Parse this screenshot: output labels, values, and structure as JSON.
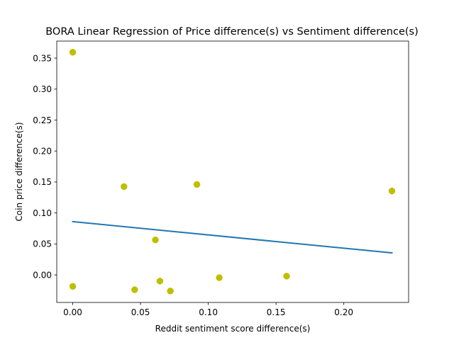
{
  "chart_data": {
    "type": "scatter",
    "title": "BORA Linear Regression of Price difference(s) vs Sentiment difference(s)",
    "xlabel": "Reddit sentiment score difference(s)",
    "ylabel": "Coin price difference(s)",
    "xlim": [
      -0.0118,
      0.2478
    ],
    "ylim": [
      -0.0445,
      0.3775
    ],
    "x_ticks": [
      0.0,
      0.05,
      0.1,
      0.15,
      0.2
    ],
    "x_tick_labels": [
      "0.00",
      "0.05",
      "0.10",
      "0.15",
      "0.20"
    ],
    "y_ticks": [
      0.0,
      0.05,
      0.1,
      0.15,
      0.2,
      0.25,
      0.3,
      0.35
    ],
    "y_tick_labels": [
      "0.00",
      "0.05",
      "0.10",
      "0.15",
      "0.20",
      "0.25",
      "0.30",
      "0.35"
    ],
    "grid": false,
    "legend": "none",
    "series": [
      {
        "kind": "points",
        "color": "#bfbf00",
        "points": [
          {
            "x": 0.0,
            "y": 0.3595
          },
          {
            "x": 0.0,
            "y": -0.0185
          },
          {
            "x": 0.0378,
            "y": 0.1425
          },
          {
            "x": 0.0457,
            "y": -0.024
          },
          {
            "x": 0.061,
            "y": 0.0565
          },
          {
            "x": 0.0643,
            "y": -0.01
          },
          {
            "x": 0.072,
            "y": -0.026
          },
          {
            "x": 0.0916,
            "y": 0.146
          },
          {
            "x": 0.1081,
            "y": -0.0045
          },
          {
            "x": 0.1578,
            "y": -0.002
          },
          {
            "x": 0.2355,
            "y": 0.1355
          }
        ]
      },
      {
        "kind": "regression-line",
        "color": "#1f77b4",
        "points": [
          {
            "x": 0.0,
            "y": 0.086
          },
          {
            "x": 0.2355,
            "y": 0.0355
          }
        ]
      }
    ]
  }
}
